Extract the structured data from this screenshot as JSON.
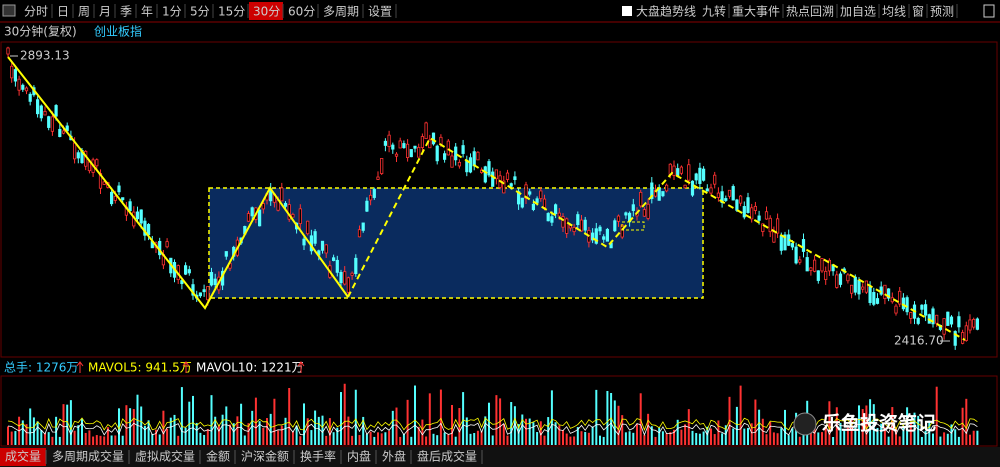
{
  "toolbar": {
    "period_tabs": [
      "分时",
      "日",
      "周",
      "月",
      "季",
      "年",
      "1分",
      "5分",
      "15分",
      "30分",
      "60分",
      "多周期",
      "设置"
    ],
    "selected_tab": "30分",
    "right_tools": [
      "大盘趋势线",
      "九转",
      "重大事件",
      "热点回溯",
      "加自选",
      "均线",
      "窗",
      "预测"
    ]
  },
  "chart_header": {
    "period": "30分钟(复权)",
    "index": "创业板指"
  },
  "price_labels": {
    "high": "2893.13",
    "low": "2416.70"
  },
  "volume_header": {
    "total": "总手: 1276万",
    "mavol5": "MAVOL5: 941.5万",
    "mavol10": "MAVOL10: 1221万"
  },
  "bottom_tabs": [
    "成交量",
    "多周期成交量",
    "虚拟成交量",
    "金额",
    "沪深金额",
    "换手率",
    "内盘",
    "外盘",
    "盘后成交量"
  ],
  "selected_bottom_tab": "成交量",
  "watermark": "乐鱼投资笔记"
}
